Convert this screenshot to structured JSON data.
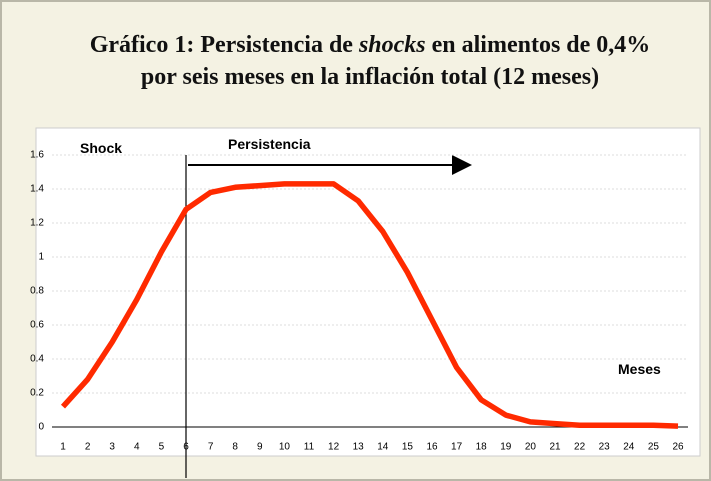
{
  "chart_data": {
    "type": "line",
    "title": {
      "line1": [
        "Gráfico 1: Persistencia de ",
        "shocks",
        " en alimentos de 0,4%"
      ],
      "line2": "por seis meses en la inflación total (12 meses)"
    },
    "annotations": {
      "shock": "Shock",
      "persistence": "Persistencia",
      "x_label": "Meses"
    },
    "categories": [
      "1",
      "2",
      "3",
      "4",
      "5",
      "6",
      "7",
      "8",
      "9",
      "10",
      "11",
      "12",
      "13",
      "14",
      "15",
      "16",
      "17",
      "18",
      "19",
      "20",
      "21",
      "22",
      "23",
      "24",
      "25",
      "26"
    ],
    "values": [
      0.12,
      0.28,
      0.5,
      0.75,
      1.03,
      1.28,
      1.38,
      1.41,
      1.42,
      1.43,
      1.43,
      1.43,
      1.33,
      1.15,
      0.91,
      0.63,
      0.35,
      0.16,
      0.07,
      0.03,
      0.02,
      0.01,
      0.01,
      0.01,
      0.01,
      0.005
    ],
    "color": "#ff2a00",
    "ylim": [
      0,
      1.6
    ],
    "yticks": [
      0,
      0.2,
      0.4,
      0.6,
      0.8,
      1,
      1.2,
      1.4,
      1.6
    ],
    "grid": true
  }
}
